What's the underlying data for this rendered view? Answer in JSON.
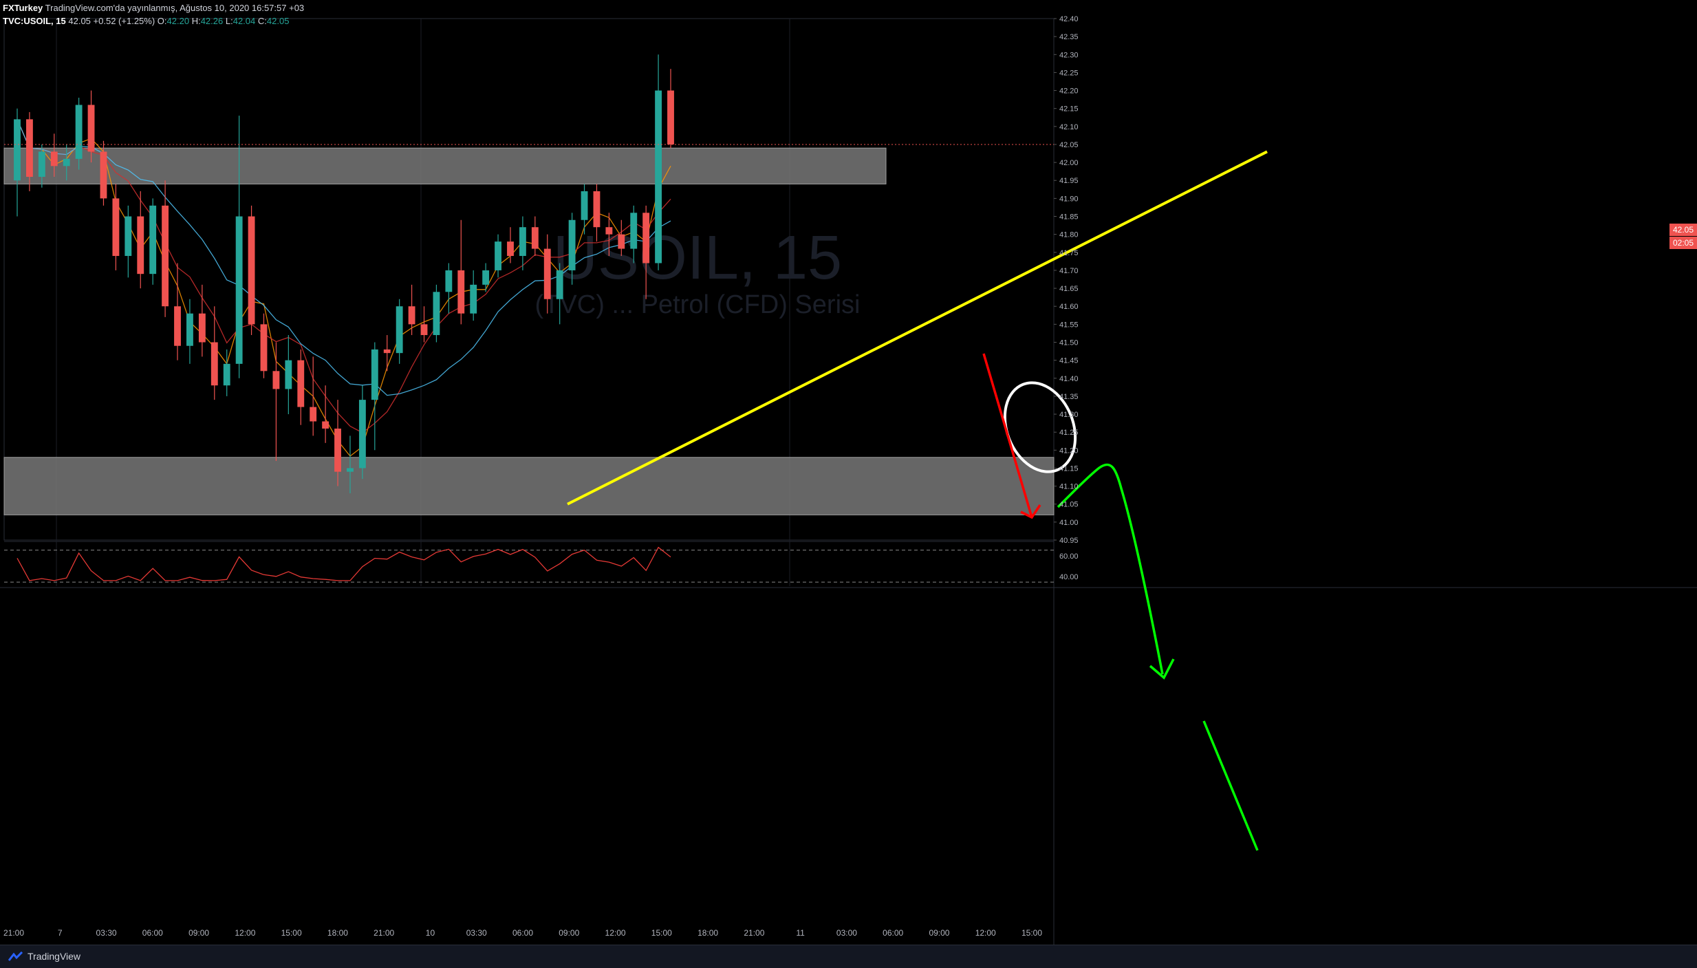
{
  "header": {
    "author": "FXTurkey",
    "published": "TradingView.com'da yayınlanmış, Ağustos 10, 2020 16:57:57 +03",
    "symbol": "TVC:USOIL, 15",
    "last": "42.05",
    "change": "+0.52 (+1.25%)",
    "o_label": "O:",
    "o_value": "42.20",
    "h_label": "H:",
    "h_value": "42.26",
    "l_label": "L:",
    "l_value": "42.04",
    "c_label": "C:",
    "c_value": "42.05"
  },
  "watermark": {
    "symbol": "USOIL, 15",
    "name": "(TVC) ... Petrol (CFD) Serisi"
  },
  "price_tag": {
    "price": "42.05",
    "countdown": "02:05"
  },
  "footer": {
    "brand": "TradingView"
  },
  "colors": {
    "bull": "#26a69a",
    "bear": "#ef5350",
    "zone": "#787878",
    "trendline": "#ffff00",
    "arrow_down": "#ff0000",
    "arrow_green": "#00ff00",
    "ellipse": "#ffffff",
    "ma_fast": "#ff9800",
    "ma_mid": "#d32f2f",
    "ma_slow": "#4fc3f7",
    "rsi": "#e53935"
  },
  "chart_data": {
    "type": "candlestick",
    "symbol": "TVC:USOIL",
    "timeframe": "15",
    "y_axis": {
      "range": [
        40.95,
        42.4
      ],
      "ticks": [
        "42.40",
        "42.35",
        "42.30",
        "42.25",
        "42.20",
        "42.15",
        "42.10",
        "42.05",
        "42.00",
        "41.95",
        "41.90",
        "41.85",
        "41.80",
        "41.75",
        "41.70",
        "41.65",
        "41.60",
        "41.55",
        "41.50",
        "41.45",
        "41.40",
        "41.35",
        "41.30",
        "41.25",
        "41.20",
        "41.15",
        "41.10",
        "41.05",
        "41.00",
        "40.95"
      ]
    },
    "x_axis": {
      "ticks": [
        "21:00",
        "7",
        "03:30",
        "06:00",
        "09:00",
        "12:00",
        "15:00",
        "18:00",
        "21:00",
        "10",
        "03:30",
        "06:00",
        "09:00",
        "12:00",
        "15:00",
        "18:00",
        "21:00",
        "11",
        "03:00",
        "06:00",
        "09:00",
        "12:00",
        "15:00"
      ]
    },
    "rsi_axis": {
      "ticks": [
        "60.00",
        "40.00"
      ],
      "levels": [
        70,
        30
      ]
    },
    "zones": [
      {
        "name": "resistance",
        "from": 41.94,
        "to": 42.04
      },
      {
        "name": "support",
        "from": 41.02,
        "to": 41.18
      }
    ],
    "trendline": {
      "from": {
        "bar": 0,
        "price": 41.05
      },
      "to": {
        "bar": 0,
        "price": 42.03
      }
    },
    "candles_ohlc": [
      [
        41.95,
        42.15,
        41.85,
        42.12
      ],
      [
        42.12,
        42.14,
        41.92,
        41.96
      ],
      [
        41.96,
        42.05,
        41.93,
        42.03
      ],
      [
        42.03,
        42.08,
        41.96,
        41.99
      ],
      [
        41.99,
        42.05,
        41.95,
        42.01
      ],
      [
        42.01,
        42.18,
        41.98,
        42.16
      ],
      [
        42.16,
        42.2,
        42.0,
        42.03
      ],
      [
        42.03,
        42.06,
        41.88,
        41.9
      ],
      [
        41.9,
        41.94,
        41.7,
        41.74
      ],
      [
        41.74,
        41.88,
        41.68,
        41.85
      ],
      [
        41.85,
        41.92,
        41.65,
        41.69
      ],
      [
        41.69,
        41.9,
        41.66,
        41.88
      ],
      [
        41.88,
        41.95,
        41.57,
        41.6
      ],
      [
        41.6,
        41.72,
        41.45,
        41.49
      ],
      [
        41.49,
        41.62,
        41.44,
        41.58
      ],
      [
        41.58,
        41.66,
        41.46,
        41.5
      ],
      [
        41.5,
        41.6,
        41.34,
        41.38
      ],
      [
        41.38,
        41.48,
        41.35,
        41.44
      ],
      [
        41.44,
        42.13,
        41.4,
        41.85
      ],
      [
        41.85,
        41.88,
        41.52,
        41.55
      ],
      [
        41.55,
        41.58,
        41.4,
        41.42
      ],
      [
        41.42,
        41.5,
        41.17,
        41.37
      ],
      [
        41.37,
        41.52,
        41.3,
        41.45
      ],
      [
        41.45,
        41.48,
        41.27,
        41.32
      ],
      [
        41.32,
        41.46,
        41.24,
        41.28
      ],
      [
        41.28,
        41.38,
        41.22,
        41.26
      ],
      [
        41.26,
        41.34,
        41.1,
        41.14
      ],
      [
        41.14,
        41.24,
        41.08,
        41.15
      ],
      [
        41.15,
        41.38,
        41.12,
        41.34
      ],
      [
        41.34,
        41.5,
        41.2,
        41.48
      ],
      [
        41.48,
        41.52,
        41.42,
        41.47
      ],
      [
        41.47,
        41.62,
        41.44,
        41.6
      ],
      [
        41.6,
        41.66,
        41.52,
        41.55
      ],
      [
        41.55,
        41.6,
        41.5,
        41.52
      ],
      [
        41.52,
        41.66,
        41.5,
        41.64
      ],
      [
        41.64,
        41.72,
        41.58,
        41.7
      ],
      [
        41.7,
        41.84,
        41.55,
        41.58
      ],
      [
        41.58,
        41.7,
        41.56,
        41.66
      ],
      [
        41.66,
        41.72,
        41.64,
        41.7
      ],
      [
        41.7,
        41.8,
        41.68,
        41.78
      ],
      [
        41.78,
        41.82,
        41.72,
        41.74
      ],
      [
        41.74,
        41.85,
        41.7,
        41.82
      ],
      [
        41.82,
        41.85,
        41.74,
        41.76
      ],
      [
        41.76,
        41.8,
        41.58,
        41.62
      ],
      [
        41.62,
        41.72,
        41.55,
        41.7
      ],
      [
        41.7,
        41.86,
        41.66,
        41.84
      ],
      [
        41.84,
        41.94,
        41.8,
        41.92
      ],
      [
        41.92,
        41.94,
        41.78,
        41.82
      ],
      [
        41.82,
        41.86,
        41.74,
        41.8
      ],
      [
        41.8,
        41.84,
        41.74,
        41.76
      ],
      [
        41.76,
        41.88,
        41.72,
        41.86
      ],
      [
        41.86,
        41.88,
        41.62,
        41.72
      ],
      [
        41.72,
        42.3,
        41.7,
        42.2
      ],
      [
        42.2,
        42.26,
        42.04,
        42.05
      ]
    ]
  }
}
